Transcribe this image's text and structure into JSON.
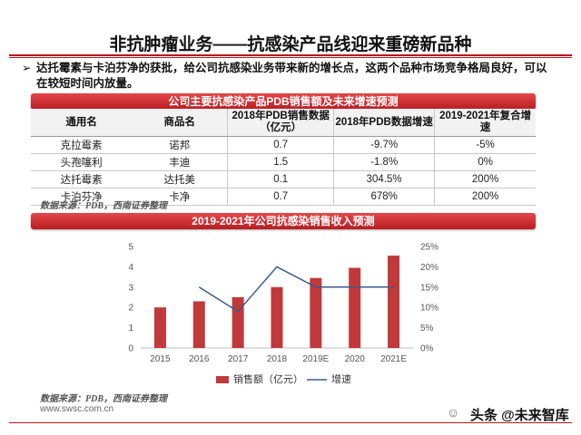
{
  "title": "非抗肿瘤业务——抗感染产品线迎来重磅新品种",
  "bullet": {
    "mark": "➢",
    "text": "达托霉素与卡泊芬净的获批，给公司抗感染业务带来新的增长点，这两个品种市场竞争格局良好，可以在较短时间内放量。"
  },
  "table_banner": "公司主要抗感染产品PDB销售额及未来增速预测",
  "table": {
    "headers": [
      "通用名",
      "商品名",
      "2018年PDB销售数据（亿元）",
      "2018年PDB数据增速",
      "2019-2021年复合增速"
    ],
    "rows": [
      [
        "克拉霉素",
        "诺邦",
        "0.7",
        "-9.7%",
        "-5%"
      ],
      [
        "头孢噻利",
        "丰迪",
        "1.5",
        "-1.8%",
        "0%"
      ],
      [
        "达托霉素",
        "达托美",
        "0.1",
        "304.5%",
        "200%"
      ],
      [
        "卡泊芬净",
        "卡净",
        "0.7",
        "678%",
        "200%"
      ]
    ]
  },
  "source_1": "数据来源：PDB，西南证券整理",
  "chart_banner": "2019-2021年公司抗感染销售收入预测",
  "chart_data": {
    "type": "bar",
    "categories": [
      "2015",
      "2016",
      "2017",
      "2018",
      "2019E",
      "2020",
      "2021E"
    ],
    "series": [
      {
        "name": "销售额（亿元）",
        "type": "bar",
        "axis": "left",
        "color": "#c0393b",
        "values": [
          2.0,
          2.3,
          2.5,
          3.0,
          3.45,
          3.95,
          4.55
        ]
      },
      {
        "name": "增速",
        "type": "line",
        "axis": "right",
        "color": "#3d5a8c",
        "values": [
          null,
          0.15,
          0.09,
          0.2,
          0.15,
          0.15,
          0.15
        ]
      }
    ],
    "y_left": {
      "min": 0,
      "max": 5,
      "ticks": [
        0,
        1,
        2,
        3,
        4,
        5
      ]
    },
    "y_right": {
      "min": 0,
      "max": 0.25,
      "ticks": [
        "0%",
        "5%",
        "10%",
        "15%",
        "20%",
        "25%"
      ]
    },
    "legend_position": "bottom",
    "grid": false
  },
  "source_2": "数据来源：PDB，西南证券整理",
  "website": "www.swsc.com.cn",
  "watermark": "头条 @未来智库"
}
